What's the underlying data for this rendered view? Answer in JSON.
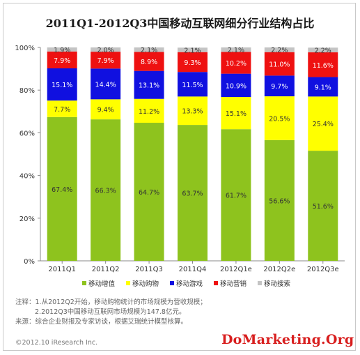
{
  "chart_data": {
    "type": "stacked_bar_100",
    "title": "2011Q1-2012Q3中国移动互联网细分行业结构占比",
    "categories": [
      "2011Q1",
      "2011Q2",
      "2011Q3",
      "2011Q4",
      "2012Q1e",
      "2012Q2e",
      "2012Q3e"
    ],
    "ylim": [
      0,
      100
    ],
    "yticks": [
      "0%",
      "20%",
      "40%",
      "60%",
      "80%",
      "100%"
    ],
    "legend_position": "bottom",
    "grid": false,
    "series": [
      {
        "name": "移动增值",
        "color": "#8ec31e",
        "values": [
          67.4,
          66.3,
          64.7,
          63.7,
          61.7,
          56.6,
          51.6
        ],
        "labels": [
          "67.4%",
          "66.3%",
          "64.7%",
          "63.7%",
          "61.7%",
          "56.6%",
          "51.6%"
        ]
      },
      {
        "name": "移动购物",
        "color": "#ffff00",
        "values": [
          7.7,
          9.4,
          11.2,
          13.3,
          15.1,
          20.5,
          25.4
        ],
        "labels": [
          "7.7%",
          "9.4%",
          "11.2%",
          "13.3%",
          "15.1%",
          "20.5%",
          "25.4%"
        ]
      },
      {
        "name": "移动游戏",
        "color": "#1010e0",
        "values": [
          15.1,
          14.4,
          13.1,
          11.5,
          10.9,
          9.7,
          9.1
        ],
        "labels": [
          "15.1%",
          "14.4%",
          "13.1%",
          "11.5%",
          "10.9%",
          "9.7%",
          "9.1%"
        ]
      },
      {
        "name": "移动营销",
        "color": "#ee1111",
        "values": [
          7.9,
          7.9,
          8.9,
          9.3,
          10.2,
          11.0,
          11.6
        ],
        "labels": [
          "7.9%",
          "7.9%",
          "8.9%",
          "9.3%",
          "10.2%",
          "11.0%",
          "11.6%"
        ]
      },
      {
        "name": "移动搜索",
        "color": "#c4c4c4",
        "values": [
          1.9,
          2.0,
          2.1,
          2.1,
          2.1,
          2.2,
          2.2
        ],
        "labels": [
          "1.9%",
          "2.0%",
          "2.1%",
          "2.1%",
          "2.1%",
          "2.2%",
          "2.2%"
        ]
      }
    ]
  },
  "notes": {
    "line1": "注释：1.从2012Q2开始，移动购物统计的市场规模为营收规模；",
    "line2": "2.2012Q3中国移动互联网市场规模为147.8亿元。",
    "line3": "来源：综合企业财报及专家访谈，根据艾瑞统计模型核算。"
  },
  "copyright": "©2012.10 iResearch Inc.",
  "watermark": "DoMarketing.Org"
}
